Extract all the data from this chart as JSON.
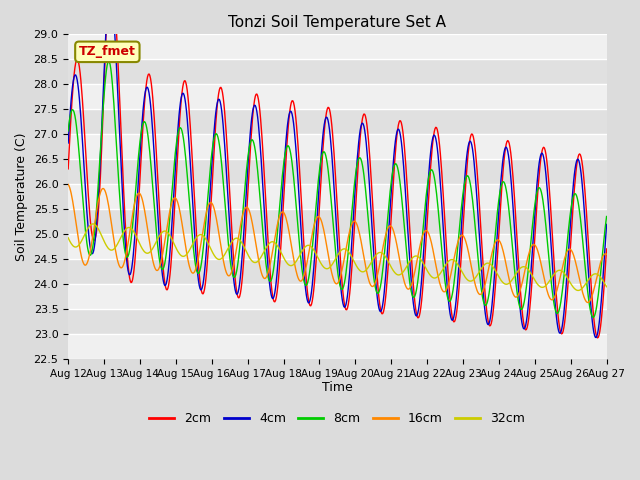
{
  "title": "Tonzi Soil Temperature Set A",
  "xlabel": "Time",
  "ylabel": "Soil Temperature (C)",
  "annotation": "TZ_fmet",
  "ylim": [
    22.5,
    29.0
  ],
  "xtick_labels": [
    "Aug 12",
    "Aug 13",
    "Aug 14",
    "Aug 15",
    "Aug 16",
    "Aug 17",
    "Aug 18",
    "Aug 19",
    "Aug 20",
    "Aug 21",
    "Aug 22",
    "Aug 23",
    "Aug 24",
    "Aug 25",
    "Aug 26",
    "Aug 27"
  ],
  "colors": {
    "2cm": "#FF0000",
    "4cm": "#0000CC",
    "8cm": "#00CC00",
    "16cm": "#FF8800",
    "32cm": "#CCCC00"
  },
  "background_color": "#DCDCDC",
  "plot_bg_color": "#DCDCDC",
  "n_days": 15,
  "points_per_day": 48,
  "annotation_facecolor": "#FFFFBB",
  "annotation_edgecolor": "#888800"
}
